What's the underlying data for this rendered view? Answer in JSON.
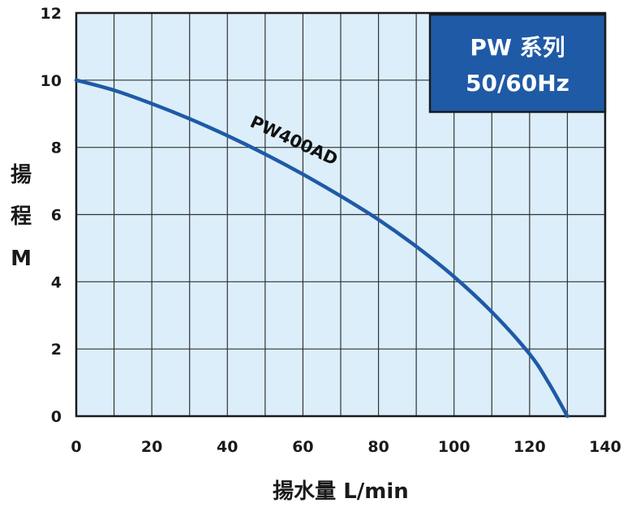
{
  "chart_data": {
    "type": "line",
    "xlabel": "揚水量 L/min",
    "ylabel": "揚程 M",
    "ylabel_chars": [
      "揚",
      "程",
      "M"
    ],
    "xlim": [
      0,
      140
    ],
    "ylim": [
      0,
      12
    ],
    "xticks": [
      "0",
      "20",
      "40",
      "60",
      "80",
      "100",
      "120",
      "140"
    ],
    "yticks": [
      "0",
      "2",
      "4",
      "6",
      "8",
      "10",
      "12"
    ],
    "grid": true,
    "badge": {
      "line1": "PW 系列",
      "line2": "50/60Hz"
    },
    "series": [
      {
        "name": "PW400AD",
        "color": "#1f5aa6",
        "x": [
          0,
          10,
          20,
          30,
          40,
          50,
          60,
          70,
          80,
          90,
          100,
          110,
          120,
          125,
          130
        ],
        "y": [
          10.0,
          9.7,
          9.3,
          8.85,
          8.35,
          7.8,
          7.2,
          6.55,
          5.85,
          5.05,
          4.15,
          3.1,
          1.85,
          1.0,
          0.0
        ]
      }
    ],
    "colors": {
      "plot_bg": "#dbeefa",
      "grid": "#333333",
      "badge_bg": "#1f5aa6"
    }
  }
}
